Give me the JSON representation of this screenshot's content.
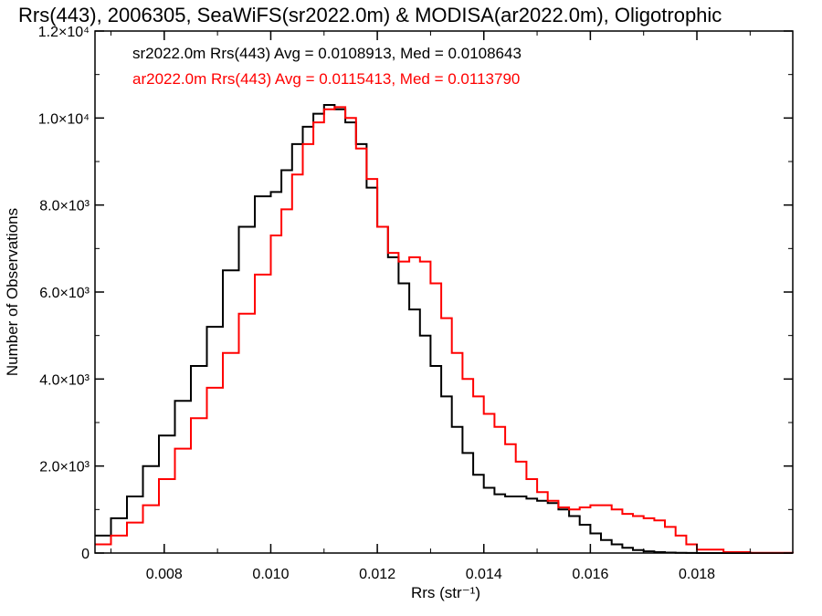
{
  "chart_data": {
    "type": "line",
    "title": "Rrs(443), 2006305, SeaWiFS(sr2022.0m) & MODISA(ar2022.0m), Oligotrophic",
    "xlabel": "Rrs (str⁻¹)",
    "ylabel": "Number of Observations",
    "xlim": [
      0.0067,
      0.0198
    ],
    "ylim": [
      0,
      12000
    ],
    "x_ticks": [
      0.008,
      0.01,
      0.012,
      0.014,
      0.016,
      0.018
    ],
    "x_tick_labels": [
      "0.008",
      "0.010",
      "0.012",
      "0.014",
      "0.016",
      "0.018"
    ],
    "y_ticks": [
      0,
      2000,
      4000,
      6000,
      8000,
      10000,
      12000
    ],
    "y_tick_labels": [
      "0",
      "2.0×10³",
      "4.0×10³",
      "6.0×10³",
      "8.0×10³",
      "1.0×10⁴",
      "1.2×10⁴"
    ],
    "grid": false,
    "legend_position": "top-left",
    "legend": [
      {
        "text": "sr2022.0m Rrs(443) Avg = 0.0108913, Med = 0.0108643",
        "color": "#000000"
      },
      {
        "text": "ar2022.0m Rrs(443) Avg = 0.0115413, Med = 0.0113790",
        "color": "#ff0000"
      }
    ],
    "series": [
      {
        "color": "#000000",
        "x": [
          0.0067,
          0.007,
          0.0073,
          0.0076,
          0.0079,
          0.0082,
          0.0085,
          0.0088,
          0.0091,
          0.0094,
          0.0097,
          0.01,
          0.0102,
          0.0104,
          0.0106,
          0.0108,
          0.011,
          0.0112,
          0.0114,
          0.0116,
          0.0118,
          0.012,
          0.0122,
          0.0124,
          0.0126,
          0.0128,
          0.013,
          0.0132,
          0.0134,
          0.0136,
          0.0138,
          0.014,
          0.0142,
          0.0144,
          0.0146,
          0.0148,
          0.015,
          0.0152,
          0.0154,
          0.0156,
          0.0158,
          0.016,
          0.0162,
          0.0164,
          0.0166,
          0.0168,
          0.017,
          0.0172,
          0.0174,
          0.0176,
          0.0178,
          0.018,
          0.0185,
          0.019,
          0.0198
        ],
        "y": [
          400,
          800,
          1300,
          2000,
          2700,
          3500,
          4300,
          5200,
          6500,
          7500,
          8200,
          8300,
          8800,
          9400,
          9800,
          10100,
          10300,
          10200,
          9900,
          9400,
          8400,
          7500,
          6800,
          6200,
          5600,
          5000,
          4300,
          3600,
          2900,
          2300,
          1800,
          1500,
          1350,
          1300,
          1300,
          1250,
          1200,
          1150,
          1000,
          850,
          650,
          450,
          300,
          200,
          120,
          70,
          40,
          20,
          10,
          5,
          3,
          0,
          0,
          0,
          0
        ]
      },
      {
        "color": "#ff0000",
        "x": [
          0.0067,
          0.007,
          0.0073,
          0.0076,
          0.0079,
          0.0082,
          0.0085,
          0.0088,
          0.0091,
          0.0094,
          0.0097,
          0.01,
          0.0102,
          0.0104,
          0.0106,
          0.0108,
          0.011,
          0.0112,
          0.0114,
          0.0116,
          0.0118,
          0.012,
          0.0122,
          0.0124,
          0.0126,
          0.0128,
          0.013,
          0.0132,
          0.0134,
          0.0136,
          0.0138,
          0.014,
          0.0142,
          0.0144,
          0.0146,
          0.0148,
          0.015,
          0.0152,
          0.0154,
          0.0156,
          0.0158,
          0.016,
          0.0162,
          0.0164,
          0.0166,
          0.0168,
          0.017,
          0.0172,
          0.0174,
          0.0176,
          0.0178,
          0.018,
          0.0185,
          0.019,
          0.0198
        ],
        "y": [
          200,
          400,
          700,
          1100,
          1700,
          2400,
          3100,
          3800,
          4600,
          5500,
          6400,
          7300,
          7900,
          8700,
          9400,
          9900,
          10200,
          10250,
          10000,
          9300,
          8600,
          7500,
          6900,
          6700,
          6800,
          6700,
          6200,
          5400,
          4600,
          4000,
          3600,
          3200,
          2900,
          2500,
          2100,
          1700,
          1400,
          1200,
          1050,
          1000,
          1050,
          1100,
          1100,
          1000,
          900,
          850,
          800,
          750,
          600,
          400,
          200,
          80,
          20,
          5,
          0
        ]
      }
    ]
  }
}
